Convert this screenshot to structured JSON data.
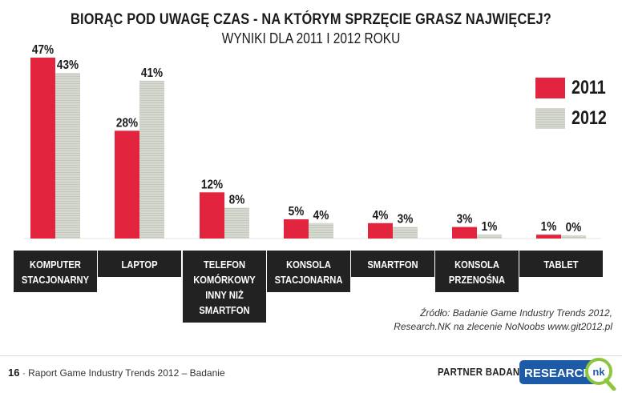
{
  "chart_data": {
    "type": "bar",
    "title": "BIORĄC POD UWAGĘ CZAS - NA KTÓRYM SPRZĘCIE GRASZ NAJWIĘCEJ?",
    "subtitle": "WYNIKI DLA 2011 I 2012 ROKU",
    "categories": [
      [
        "KOMPUTER",
        "STACJONARNY"
      ],
      [
        "LAPTOP"
      ],
      [
        "TELEFON",
        "KOMÓRKOWY",
        "INNY NIŻ",
        "SMARTFON"
      ],
      [
        "KONSOLA",
        "STACJONARNA"
      ],
      [
        "SMARTFON"
      ],
      [
        "KONSOLA",
        "PRZENOŚNA"
      ],
      [
        "TABLET"
      ]
    ],
    "series": [
      {
        "name": "2011",
        "values": [
          47,
          28,
          12,
          5,
          4,
          3,
          1
        ],
        "labels": [
          "47%",
          "28%",
          "12%",
          "5%",
          "4%",
          "3%",
          "1%"
        ],
        "color": "#e3243f"
      },
      {
        "name": "2012",
        "values": [
          43,
          41,
          8,
          4,
          3,
          1,
          0
        ],
        "labels": [
          "43%",
          "41%",
          "8%",
          "4%",
          "3%",
          "1%",
          "0%"
        ],
        "color": "#d4d7cf"
      }
    ],
    "ylim": [
      0,
      47
    ],
    "legend": "top-right",
    "grid": false
  },
  "source": {
    "line1": "Źródło: Badanie Game Industry Trends 2012,",
    "line2": "Research.NK na zlecenie NoNoobs www.git2012.pl"
  },
  "footer": {
    "page_number": "16",
    "report_text": "· Raport Game Industry Trends 2012 – Badanie",
    "partner_label": "PARTNER BADANIA:",
    "logo_text_main": "RESEARCH",
    "logo_text_badge": "nk"
  },
  "colors": {
    "accent_red": "#e3243f",
    "gray_bar": "#d4d7cf",
    "category_box": "#222222",
    "logo_blue": "#1d5aa7",
    "logo_green": "#8cc63f"
  }
}
